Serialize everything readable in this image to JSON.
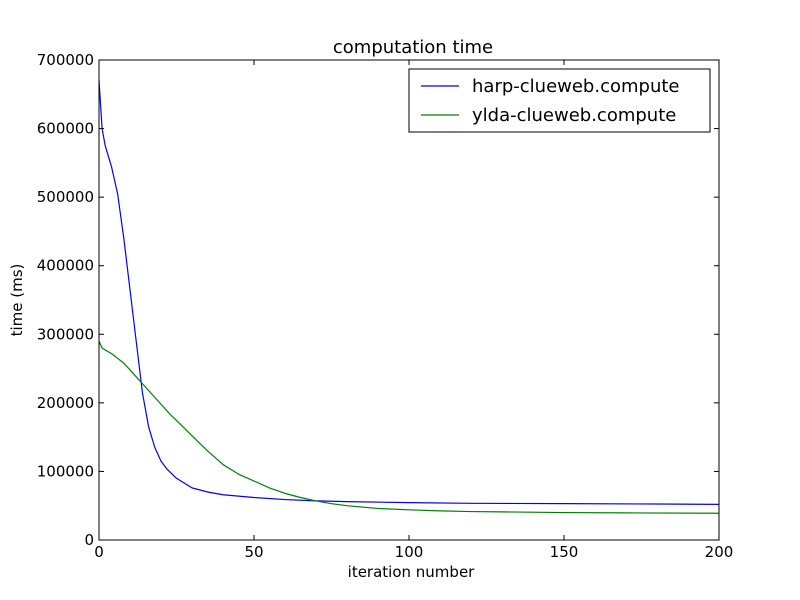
{
  "chart_data": {
    "type": "line",
    "title": "computation time",
    "xlabel": "iteration number",
    "ylabel": "time (ms)",
    "xlim": [
      0,
      200
    ],
    "ylim": [
      0,
      700000
    ],
    "xticks": [
      0,
      50,
      100,
      150,
      200
    ],
    "yticks": [
      0,
      100000,
      200000,
      300000,
      400000,
      500000,
      600000,
      700000
    ],
    "xtick_labels": [
      "0",
      "50",
      "100",
      "150",
      "200"
    ],
    "ytick_labels": [
      "0",
      "100000",
      "200000",
      "300000",
      "400000",
      "500000",
      "600000",
      "700000"
    ],
    "grid": false,
    "legend_position": "top-right",
    "series": [
      {
        "name": "harp-clueweb.compute",
        "color": "#0000ff",
        "x": [
          0,
          1,
          2,
          4,
          6,
          8,
          10,
          12,
          14,
          16,
          18,
          20,
          22,
          25,
          30,
          35,
          40,
          50,
          60,
          70,
          80,
          100,
          120,
          150,
          180,
          200
        ],
        "y": [
          670000,
          600000,
          575000,
          545000,
          505000,
          440000,
          365000,
          290000,
          215000,
          165000,
          135000,
          115000,
          103000,
          90000,
          76000,
          70000,
          66000,
          62000,
          59000,
          57000,
          56000,
          54500,
          53500,
          53000,
          52500,
          52000
        ]
      },
      {
        "name": "ylda-clueweb.compute",
        "color": "#008000",
        "x": [
          0,
          1,
          2,
          4,
          6,
          8,
          10,
          12,
          14,
          16,
          18,
          20,
          23,
          26,
          30,
          35,
          40,
          45,
          50,
          55,
          60,
          65,
          70,
          75,
          80,
          90,
          100,
          110,
          120,
          130,
          150,
          170,
          200
        ],
        "y": [
          290000,
          280000,
          277000,
          272000,
          265000,
          258000,
          248000,
          238000,
          228000,
          218000,
          208000,
          198000,
          183000,
          170000,
          152000,
          130000,
          110000,
          96000,
          86000,
          76000,
          68000,
          62000,
          57000,
          53000,
          50000,
          46000,
          44000,
          42500,
          41500,
          41000,
          40000,
          39500,
          39000
        ]
      }
    ]
  }
}
